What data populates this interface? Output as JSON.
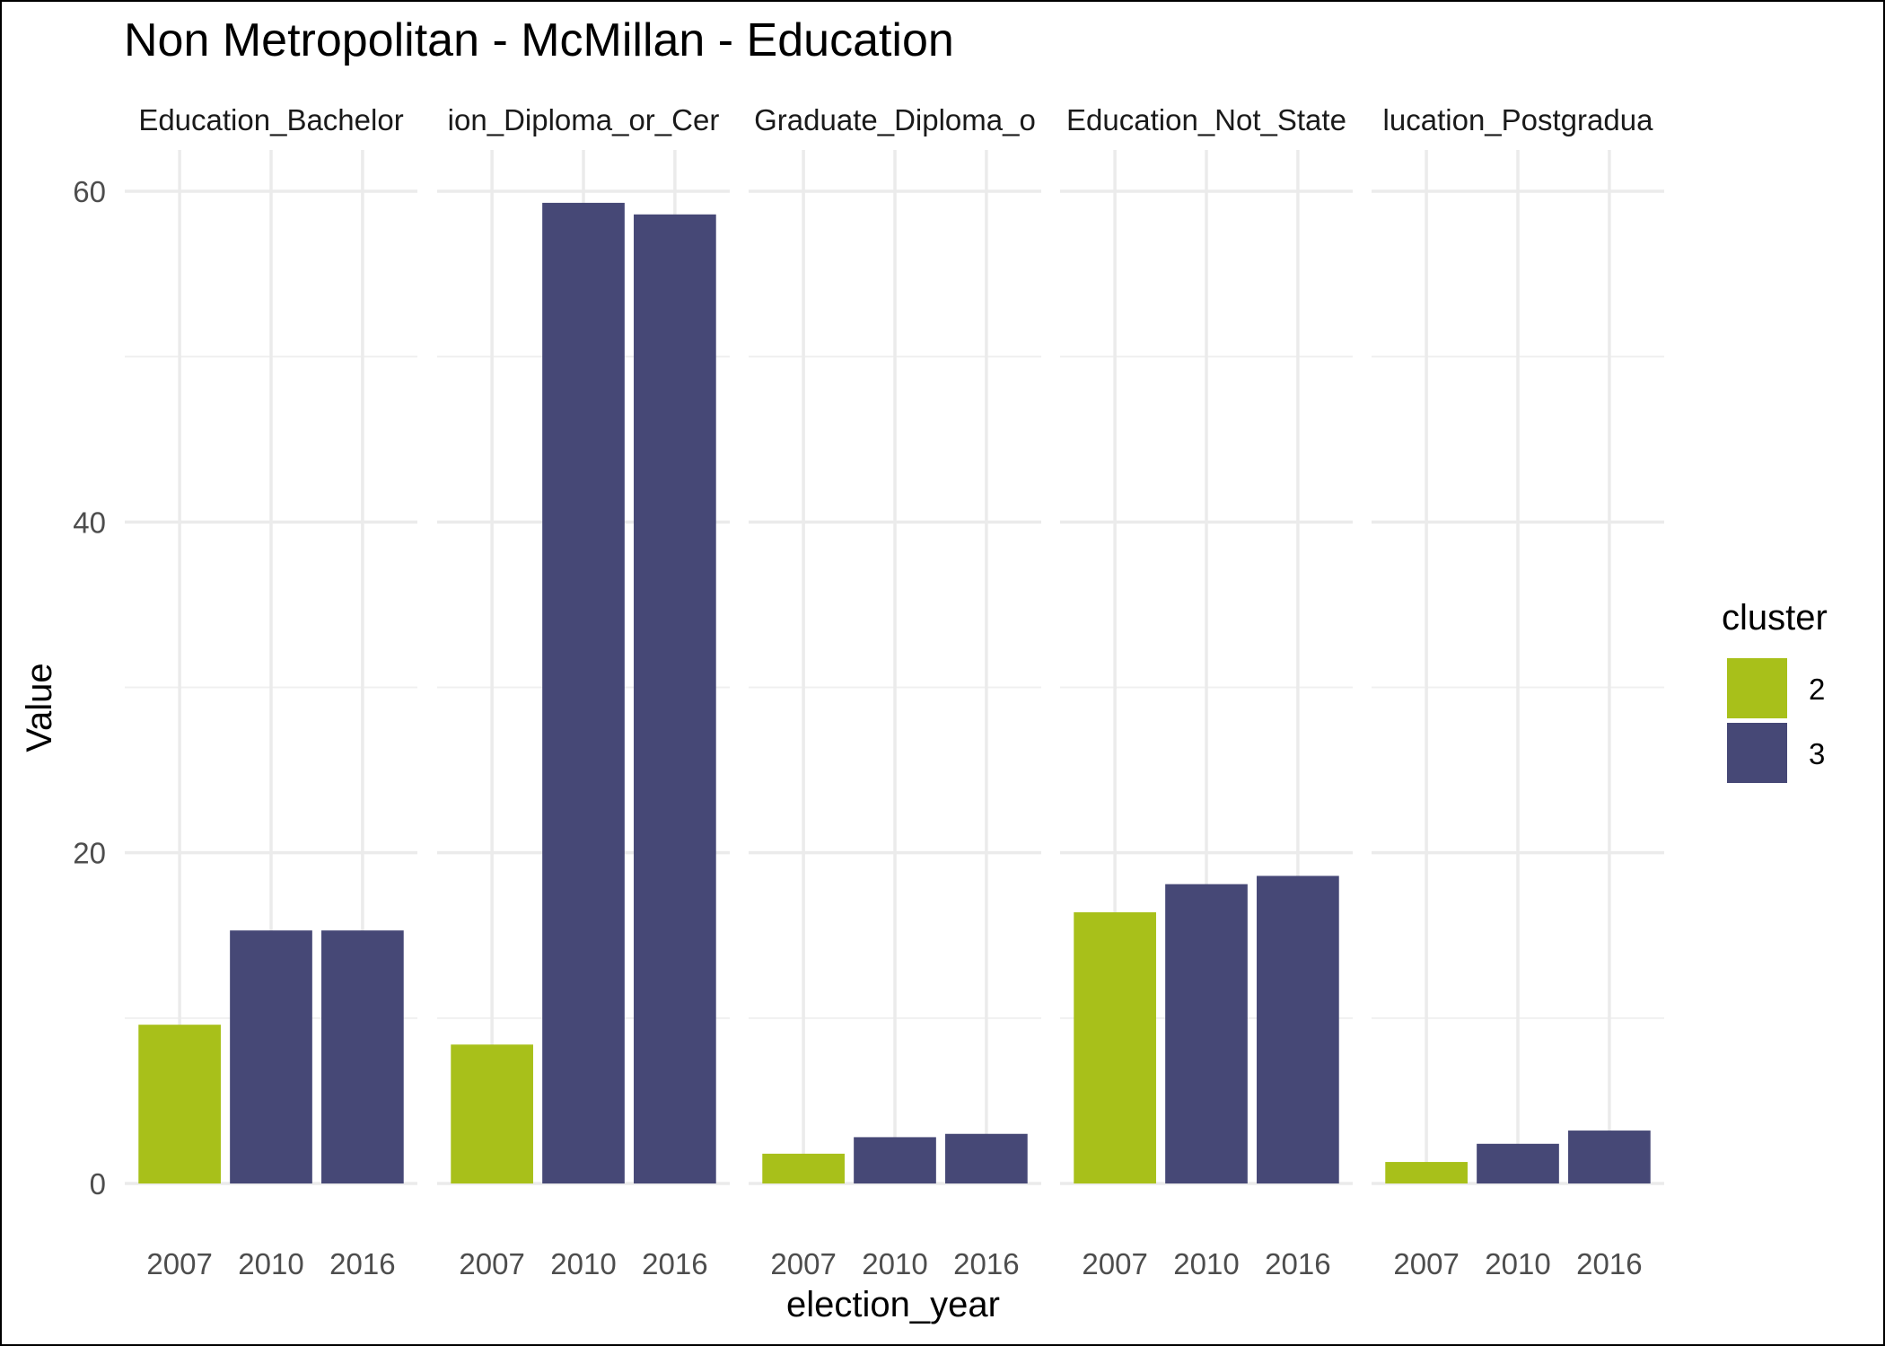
{
  "chart_data": {
    "type": "bar",
    "title": "Non Metropolitan - McMillan - Education",
    "xlabel": "election_year",
    "ylabel": "Value",
    "ylim": [
      0,
      62.5
    ],
    "y_ticks": [
      0,
      20,
      40,
      60
    ],
    "grid": true,
    "legend": {
      "title": "cluster",
      "placement": "right",
      "items": [
        {
          "label": "2",
          "color": "#a8c01a"
        },
        {
          "label": "3",
          "color": "#464876"
        }
      ]
    },
    "categories": [
      "2007",
      "2010",
      "2016"
    ],
    "facets": [
      {
        "label": "Education_Bachelor",
        "values": [
          9.6,
          15.3,
          15.3
        ],
        "clusters": [
          "2",
          "3",
          "3"
        ]
      },
      {
        "label": "ion_Diploma_or_Cer",
        "values": [
          8.4,
          59.3,
          58.6
        ],
        "clusters": [
          "2",
          "3",
          "3"
        ]
      },
      {
        "label": "Graduate_Diploma_o",
        "values": [
          1.8,
          2.8,
          3.0
        ],
        "clusters": [
          "2",
          "3",
          "3"
        ]
      },
      {
        "label": "Education_Not_State",
        "values": [
          16.4,
          18.1,
          18.6
        ],
        "clusters": [
          "2",
          "3",
          "3"
        ]
      },
      {
        "label": "lucation_Postgradua",
        "values": [
          1.3,
          2.4,
          3.2
        ],
        "clusters": [
          "2",
          "3",
          "3"
        ]
      }
    ]
  }
}
